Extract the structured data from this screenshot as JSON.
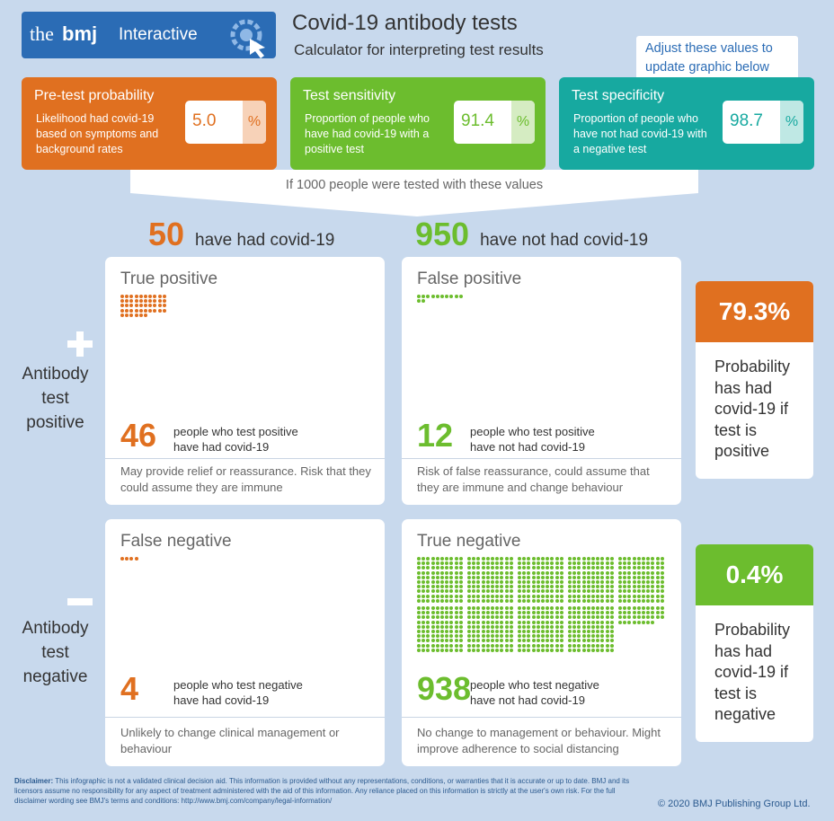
{
  "header": {
    "brand_the": "the",
    "brand_bmj": "bmj",
    "brand_interactive": "Interactive",
    "title": "Covid-19 antibody tests",
    "subtitle": "Calculator for interpreting test results"
  },
  "tooltip": "Adjust these values to update graphic below",
  "inputs": [
    {
      "label": "Pre-test probability",
      "description": "Likelihood had covid-19 based on symptoms and background rates",
      "value": "5.0",
      "unit": "%"
    },
    {
      "label": "Test sensitivity",
      "description": "Proportion of people who have had covid-19 with a positive test",
      "value": "91.4",
      "unit": "%"
    },
    {
      "label": "Test specificity",
      "description": "Proportion of people who have not had covid-19 with a negative test",
      "value": "98.7",
      "unit": "%"
    }
  ],
  "banner": "If 1000 people were tested with these values",
  "columns": [
    {
      "count": 50,
      "label": "have had covid-19"
    },
    {
      "count": 950,
      "label": "have not had covid-19"
    }
  ],
  "rows": [
    {
      "label": "Antibody test positive"
    },
    {
      "label": "Antibody test negative"
    }
  ],
  "cells": [
    {
      "title": "True positive",
      "count": 46,
      "description": "people who test positive have had covid-19",
      "note": "May provide relief or reassurance. Risk that they could assume they are immune"
    },
    {
      "title": "False positive",
      "count": 12,
      "description": "people who test positive have not had covid-19",
      "note": "Risk of false reassurance, could assume that they are immune and change behaviour"
    },
    {
      "title": "False negative",
      "count": 4,
      "description": "people who test negative have had covid-19",
      "note": "Unlikely to change clinical management or behaviour"
    },
    {
      "title": "True negative",
      "count": 938,
      "description": "people who test negative have not had covid-19",
      "note": "No change to management or behaviour. Might improve adherence to social distancing"
    }
  ],
  "results": [
    {
      "value": "79.3%",
      "label": "Probability has had covid-19 if test is positive"
    },
    {
      "value": "0.4%",
      "label": "Probability has had covid-19 if test is negative"
    }
  ],
  "disclaimer": {
    "label": "Disclaimer:",
    "text": "This infographic is not a validated clinical decision aid. This information is provided without any representations, conditions, or warranties that it is accurate or up to date. BMJ and its licensors assume no responsibility for any aspect of treatment administered with the aid of this information. Any reliance placed on this information is strictly at the user's own risk. For the full disclaimer wording see BMJ's terms and conditions: http://www.bmj.com/company/legal-information/"
  },
  "copyright": "© 2020 BMJ Publishing Group Ltd."
}
